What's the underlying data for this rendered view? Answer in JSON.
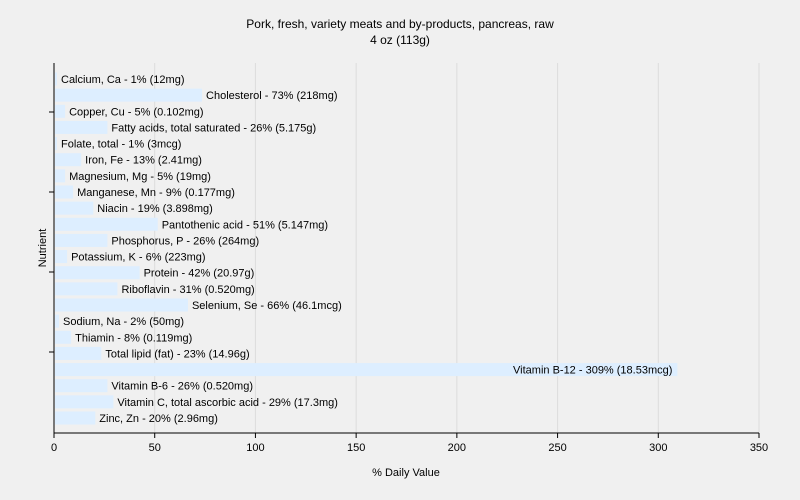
{
  "chart_data": {
    "type": "bar",
    "orientation": "horizontal",
    "title": "Pork, fresh, variety meats and by-products, pancreas, raw",
    "subtitle": "4 oz (113g)",
    "xlabel": "% Daily Value",
    "ylabel": "Nutrient",
    "xlim": [
      0,
      350
    ],
    "xticks": [
      0,
      50,
      100,
      150,
      200,
      250,
      300,
      350
    ],
    "grid": true,
    "legend": "none",
    "bar_color": "#ddeeff",
    "bars": [
      {
        "label": "Calcium, Ca - 1% (12mg)",
        "value": 1
      },
      {
        "label": "Cholesterol - 73% (218mg)",
        "value": 73
      },
      {
        "label": "Copper, Cu - 5% (0.102mg)",
        "value": 5
      },
      {
        "label": "Fatty acids, total saturated - 26% (5.175g)",
        "value": 26
      },
      {
        "label": "Folate, total - 1% (3mcg)",
        "value": 1
      },
      {
        "label": "Iron, Fe - 13% (2.41mg)",
        "value": 13
      },
      {
        "label": "Magnesium, Mg - 5% (19mg)",
        "value": 5
      },
      {
        "label": "Manganese, Mn - 9% (0.177mg)",
        "value": 9
      },
      {
        "label": "Niacin - 19% (3.898mg)",
        "value": 19
      },
      {
        "label": "Pantothenic acid - 51% (5.147mg)",
        "value": 51
      },
      {
        "label": "Phosphorus, P - 26% (264mg)",
        "value": 26
      },
      {
        "label": "Potassium, K - 6% (223mg)",
        "value": 6
      },
      {
        "label": "Protein - 42% (20.97g)",
        "value": 42
      },
      {
        "label": "Riboflavin - 31% (0.520mg)",
        "value": 31
      },
      {
        "label": "Selenium, Se - 66% (46.1mcg)",
        "value": 66
      },
      {
        "label": "Sodium, Na - 2% (50mg)",
        "value": 2
      },
      {
        "label": "Thiamin - 8% (0.119mg)",
        "value": 8
      },
      {
        "label": "Total lipid (fat) - 23% (14.96g)",
        "value": 23
      },
      {
        "label": "Vitamin B-12 - 309% (18.53mcg)",
        "value": 309
      },
      {
        "label": "Vitamin B-6 - 26% (0.520mg)",
        "value": 26
      },
      {
        "label": "Vitamin C, total ascorbic acid - 29% (17.3mg)",
        "value": 29
      },
      {
        "label": "Zinc, Zn - 20% (2.96mg)",
        "value": 20
      }
    ]
  }
}
